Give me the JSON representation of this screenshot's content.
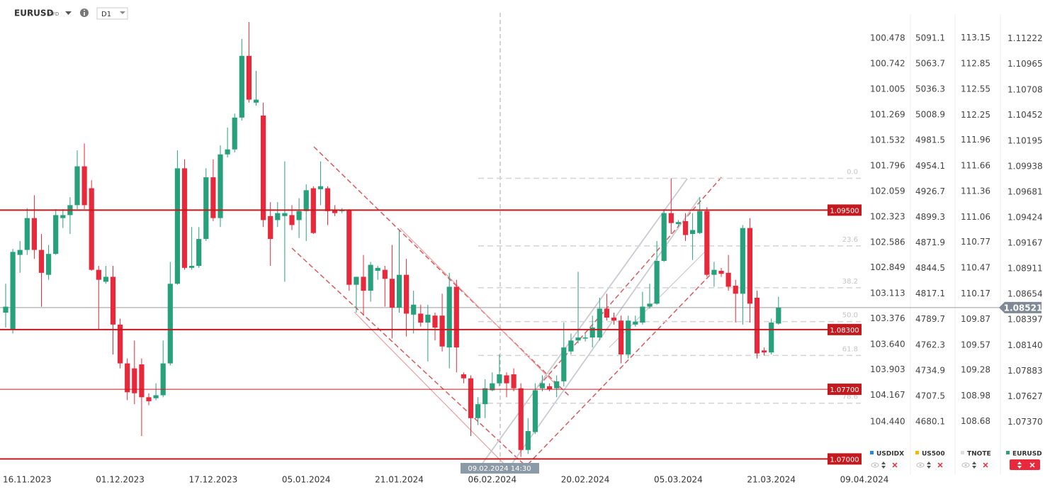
{
  "header": {
    "symbol": "EURUSD",
    "badge": "CFD",
    "timeframe": "D1"
  },
  "chart_data": {
    "type": "candlestick",
    "categories": [
      null,
      null,
      null,
      "16.11.2023",
      null,
      null,
      null,
      null,
      null,
      null,
      null,
      null,
      null,
      null,
      null,
      null,
      "01.12.2023",
      null,
      null,
      null,
      null,
      null,
      null,
      null,
      null,
      null,
      null,
      null,
      null,
      "17.12.2023",
      null,
      null,
      null,
      null,
      null,
      null,
      null,
      null,
      null,
      null,
      null,
      null,
      "05.01.2024",
      null,
      null,
      null,
      null,
      null,
      null,
      null,
      null,
      null,
      null,
      null,
      null,
      "21.01.2024",
      null,
      null,
      null,
      null,
      null,
      null,
      null,
      null,
      null,
      null,
      null,
      null,
      "06.02.2024",
      null,
      null,
      null,
      null,
      null,
      null,
      null,
      null,
      null,
      null,
      null,
      null,
      "20.02.2024",
      null,
      null,
      null,
      null,
      null,
      null,
      null,
      null,
      null,
      null,
      null,
      null,
      "05.03.2024",
      null,
      null,
      null,
      null,
      null,
      null,
      null,
      null,
      null,
      null,
      null,
      null,
      "21.03.2024",
      null,
      null,
      null,
      null,
      null,
      null,
      null,
      null,
      null,
      null,
      null,
      null,
      "09.04.2024"
    ],
    "series": [
      {
        "name": "EURUSD",
        "up_color": "#26a17b",
        "down_color": "#e8283b",
        "open": [
          1.0847,
          1.083,
          1.0905,
          1.091,
          1.0942,
          1.091,
          1.0885,
          1.0906,
          1.0942,
          1.0945,
          1.0955,
          1.0994,
          1.0972,
          1.089,
          1.0878,
          1.0883,
          1.0835,
          1.0796,
          1.0791,
          1.0795,
          1.0762,
          1.0761,
          1.0764,
          1.0796,
          1.0876,
          1.0992,
          1.0892,
          1.0894,
          1.0921,
          1.0983,
          1.0942,
          1.1006,
          1.1011,
          1.1043,
          1.1105,
          1.1058,
          1.1045,
          1.0944,
          1.094,
          1.0944,
          1.0945,
          1.094,
          1.0949,
          1.0972,
          1.0971,
          1.0972,
          1.095,
          1.0949,
          1.095,
          1.0875,
          1.0883,
          1.0869,
          1.0889,
          1.089,
          1.0881,
          1.0852,
          1.0885,
          1.0845,
          1.0846,
          1.0837,
          1.0844,
          1.0844,
          1.0812,
          1.0873,
          1.0785,
          1.0781,
          1.0741,
          1.0755,
          1.0769,
          1.0776,
          1.0784,
          1.0785,
          1.0771,
          1.0709,
          1.0727,
          1.0771,
          1.0773,
          1.0771,
          1.0778,
          1.0808,
          1.0819,
          1.0821,
          1.0822,
          1.0822,
          1.0851,
          1.0842,
          1.0839,
          1.0805,
          1.0835,
          1.0837,
          1.0853,
          1.0856,
          1.0899,
          1.0947,
          1.0936,
          1.0939,
          1.0926,
          1.0927,
          1.0949,
          1.0885,
          1.0889,
          1.0887,
          1.0874,
          1.0866,
          1.0932,
          1.0862,
          1.0809,
          1.0807,
          1.0836,
          null,
          null,
          null,
          null,
          null,
          null,
          null,
          null,
          null,
          null,
          null,
          null
        ],
        "high": [
          1.0876,
          1.0911,
          1.0919,
          1.0952,
          1.0965,
          1.0926,
          1.0915,
          1.0951,
          1.0951,
          1.0963,
          1.101,
          1.1017,
          1.098,
          1.0894,
          1.0894,
          1.0894,
          1.0841,
          1.0801,
          1.0819,
          1.0801,
          1.0766,
          1.0776,
          1.0819,
          1.0898,
          1.101,
          1.1001,
          1.0933,
          1.0933,
          1.0992,
          1.1001,
          1.1015,
          1.1033,
          1.1047,
          1.1122,
          1.1139,
          1.109,
          1.1058,
          1.0958,
          1.0958,
          1.0999,
          1.0955,
          1.0962,
          1.0976,
          1.0974,
          1.0999,
          1.0974,
          1.0955,
          1.0952,
          1.0951,
          1.0883,
          1.0905,
          1.0898,
          1.0894,
          1.0894,
          1.0915,
          1.093,
          1.0901,
          1.0869,
          1.0855,
          1.0855,
          1.0847,
          1.0866,
          1.0887,
          1.088,
          1.0787,
          1.0784,
          1.0762,
          1.078,
          1.0787,
          1.0805,
          1.0787,
          1.0791,
          1.0776,
          1.0741,
          1.0776,
          1.0784,
          1.0776,
          1.0784,
          1.0837,
          1.0826,
          1.0888,
          1.0826,
          1.0844,
          1.0862,
          1.0866,
          1.0847,
          1.0844,
          1.0844,
          1.0844,
          1.0868,
          1.0876,
          1.0919,
          1.0951,
          1.0982,
          1.094,
          1.0947,
          1.0947,
          1.0963,
          1.0953,
          1.0898,
          1.0892,
          1.0905,
          1.088,
          1.0935,
          1.0942,
          1.0869,
          1.0812,
          1.0841,
          1.0863,
          null,
          null,
          null,
          null,
          null,
          null,
          null,
          null,
          null,
          null,
          null,
          null
        ],
        "low": [
          1.0832,
          1.0826,
          1.0887,
          1.0905,
          1.0901,
          1.0853,
          1.088,
          1.0905,
          1.0932,
          1.0926,
          1.0951,
          1.0951,
          1.0889,
          1.083,
          1.0876,
          1.0805,
          1.0791,
          1.0759,
          1.0755,
          1.0723,
          1.0754,
          1.0759,
          1.0762,
          1.0794,
          1.0875,
          1.089,
          1.089,
          1.0892,
          1.0919,
          1.0939,
          1.0933,
          1.1003,
          1.1008,
          1.104,
          1.1058,
          1.1055,
          1.0933,
          1.0894,
          1.0933,
          1.0878,
          1.093,
          1.0922,
          1.0919,
          1.0926,
          1.0955,
          1.0935,
          1.0944,
          1.0947,
          1.0869,
          1.0847,
          1.0844,
          1.0858,
          1.088,
          1.0853,
          1.0821,
          1.0847,
          1.0823,
          1.0826,
          1.0833,
          1.0798,
          1.0819,
          1.0808,
          1.0791,
          1.0787,
          1.0776,
          1.0723,
          1.0734,
          1.0741,
          1.0768,
          1.0773,
          1.0762,
          1.0768,
          1.0702,
          1.0705,
          1.0725,
          1.0768,
          1.0768,
          1.0762,
          1.0773,
          1.0805,
          1.0816,
          1.0818,
          1.0812,
          1.0819,
          1.0839,
          1.0835,
          1.0796,
          1.0801,
          1.0833,
          1.0835,
          1.0851,
          1.0855,
          1.0898,
          1.0926,
          1.0933,
          1.0919,
          1.09,
          1.0926,
          1.0883,
          1.0873,
          1.0883,
          1.0869,
          1.0837,
          1.0835,
          1.0837,
          1.0801,
          1.0804,
          1.0805,
          1.0835,
          null,
          null,
          null,
          null,
          null,
          null,
          null,
          null,
          null,
          null,
          null,
          null
        ],
        "close": [
          1.0853,
          1.0908,
          1.091,
          1.0942,
          1.091,
          1.0887,
          1.0906,
          1.0945,
          1.0945,
          1.0955,
          1.0994,
          1.0955,
          1.089,
          1.088,
          1.0883,
          1.0835,
          1.0796,
          1.0767,
          1.0766,
          1.0762,
          1.0758,
          1.0764,
          1.0796,
          1.0876,
          1.0992,
          1.0892,
          1.0894,
          1.0921,
          1.0983,
          1.0942,
          1.1006,
          1.1011,
          1.1043,
          1.1105,
          1.1061,
          1.1061,
          1.094,
          1.0921,
          1.0947,
          1.0947,
          1.0935,
          1.0949,
          1.097,
          1.0927,
          1.0974,
          1.0949,
          1.0947,
          1.095,
          1.0875,
          1.0883,
          1.0869,
          1.0895,
          1.0892,
          1.0881,
          1.0852,
          1.0885,
          1.0846,
          1.0855,
          1.0837,
          1.0845,
          1.0832,
          1.0813,
          1.0873,
          1.0812,
          1.0781,
          1.0741,
          1.0755,
          1.0771,
          1.0776,
          1.0785,
          1.0776,
          1.0771,
          1.0709,
          1.0728,
          1.0769,
          1.0776,
          1.077,
          1.0778,
          1.0812,
          1.0819,
          1.0822,
          1.0822,
          1.0832,
          1.0851,
          1.0842,
          1.0839,
          1.0805,
          1.0839,
          1.0838,
          1.0853,
          1.0856,
          1.0899,
          1.0947,
          1.0937,
          1.0938,
          1.0925,
          1.093,
          1.0949,
          1.0885,
          1.089,
          1.0886,
          1.0873,
          1.0866,
          1.0932,
          1.0856,
          1.0806,
          1.0807,
          1.0837,
          1.0852,
          null,
          null,
          null,
          null,
          null,
          null,
          null,
          null,
          null,
          null,
          null,
          null
        ]
      }
    ],
    "ylim": [
      1.0691,
      1.1154
    ],
    "yticks": [
      1.11222,
      1.10965,
      1.10708,
      1.10452,
      1.10195,
      1.09938,
      1.09681,
      1.09424,
      1.09167,
      1.08911,
      1.08654,
      1.08397,
      {
        "value": 1.0814,
        "label": "1.08140"
      },
      1.07883,
      1.07627,
      {
        "value": 1.0737,
        "label": "1.07370"
      }
    ],
    "axis_color": "#26a17b",
    "last_price": 1.08521,
    "levels": [
      {
        "value": 1.095,
        "label": "1.09500"
      },
      {
        "value": 1.083,
        "label": "1.08300"
      },
      {
        "value": 1.077,
        "label": "1.07700"
      },
      {
        "value": 1.07,
        "label": "1.07000"
      }
    ],
    "level_color": "#c41a1f",
    "fib_levels": [
      {
        "value": 1.0982,
        "label": "0.0"
      },
      {
        "value": 1.0914,
        "label": "23.6"
      },
      {
        "value": 1.0872,
        "label": "38.2"
      },
      {
        "value": 1.0838,
        "label": "50.0"
      },
      {
        "value": 1.0804,
        "label": "61.8"
      },
      {
        "value": 1.0756,
        "label": "78.6"
      }
    ],
    "crosshair_label": "09.02.2024 14:30",
    "overlay_axes": [
      {
        "name": "USDIDX",
        "color": "#1e88e5",
        "ylim": [
          104.916,
          100.156
        ],
        "yticks": [
          100.478,
          100.742,
          101.005,
          101.269,
          101.532,
          101.796,
          102.059,
          102.323,
          102.586,
          102.849,
          103.113,
          103.376,
          {
            "value": 103.64,
            "label": "103.640"
          },
          103.903,
          104.167,
          {
            "value": 104.44,
            "label": "104.440"
          }
        ]
      },
      {
        "name": "US500",
        "color": "#f5b800",
        "ylim": [
          4630.7,
          5124.5
        ],
        "yticks": [
          5091.1,
          5063.7,
          5036.3,
          5008.9,
          4981.5,
          4954.1,
          4926.7,
          4899.3,
          4871.9,
          4844.5,
          4817.1,
          4789.7,
          4762.3,
          4734.9,
          4707.5,
          4680.1
        ]
      },
      {
        "name": "TNOTE",
        "color": "#dddddd",
        "ylim": [
          108.14,
          113.51
        ],
        "yticks": [
          113.15,
          112.85,
          112.55,
          112.25,
          111.96,
          111.66,
          111.36,
          111.06,
          110.77,
          110.47,
          110.17,
          109.87,
          109.57,
          109.28,
          108.98,
          108.68
        ]
      }
    ]
  }
}
